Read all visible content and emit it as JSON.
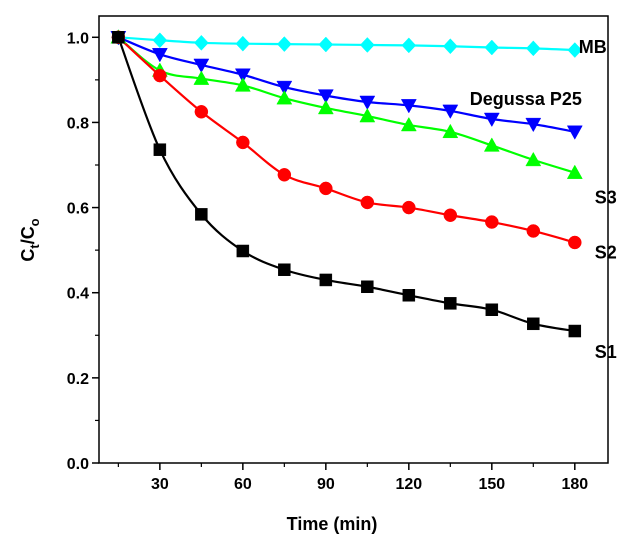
{
  "chart_data": {
    "type": "line",
    "xlabel": "Time (min)",
    "ylabel_main": "C",
    "ylabel_sub_t": "t",
    "ylabel_slash": "/C",
    "ylabel_sub_o": "o",
    "xlim": [
      8,
      192
    ],
    "ylim": [
      0.0,
      1.05
    ],
    "xticks": [
      30,
      60,
      90,
      120,
      150,
      180
    ],
    "xtick_labels": [
      "30",
      "60",
      "90",
      "120",
      "150",
      "180"
    ],
    "yticks": [
      0.0,
      0.2,
      0.4,
      0.6,
      0.8,
      1.0
    ],
    "ytick_labels": [
      "0.0",
      "0.2",
      "0.4",
      "0.6",
      "0.8",
      "1.0"
    ],
    "grid": false,
    "x": [
      15,
      30,
      45,
      60,
      75,
      90,
      105,
      120,
      135,
      150,
      165,
      180
    ],
    "series": [
      {
        "name": "MB",
        "color": "#00ffff",
        "marker": "diamond",
        "values": [
          1.0,
          0.993,
          0.987,
          0.985,
          0.984,
          0.983,
          0.982,
          0.981,
          0.979,
          0.976,
          0.974,
          0.97
        ]
      },
      {
        "name": "Degussa P25",
        "color": "#0000ff",
        "marker": "triangle-down",
        "values": [
          1.0,
          0.96,
          0.935,
          0.912,
          0.883,
          0.863,
          0.848,
          0.84,
          0.827,
          0.808,
          0.796,
          0.778
        ]
      },
      {
        "name": "S3",
        "color": "#00ff00",
        "marker": "triangle-up",
        "values": [
          1.0,
          0.922,
          0.903,
          0.887,
          0.857,
          0.834,
          0.815,
          0.794,
          0.778,
          0.746,
          0.712,
          0.682
        ]
      },
      {
        "name": "S2",
        "color": "#ff0000",
        "marker": "circle",
        "values": [
          1.0,
          0.91,
          0.825,
          0.753,
          0.677,
          0.645,
          0.612,
          0.6,
          0.582,
          0.566,
          0.545,
          0.518
        ]
      },
      {
        "name": "S1",
        "color": "#000000",
        "marker": "square",
        "values": [
          1.0,
          0.736,
          0.584,
          0.498,
          0.454,
          0.43,
          0.414,
          0.394,
          0.375,
          0.36,
          0.327,
          0.31
        ]
      }
    ]
  }
}
